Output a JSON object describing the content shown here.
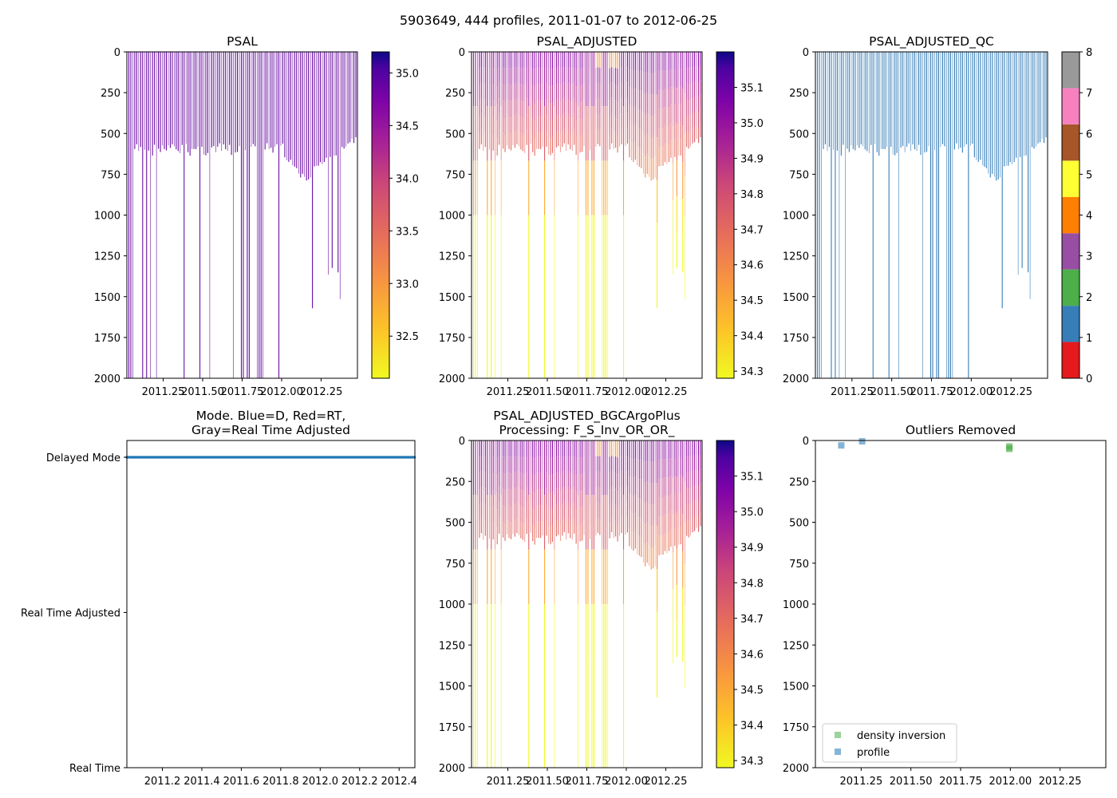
{
  "suptitle": "5903649, 444 profiles, 2011-01-07 to 2012-06-25",
  "chart_data": [
    {
      "type": "heatmap",
      "id": "psal",
      "title": "PSAL",
      "xlim": [
        2011.02,
        2012.48
      ],
      "x_ticks": [
        "2011.25",
        "2011.50",
        "2011.75",
        "2012.00",
        "2012.25"
      ],
      "x_tick_values": [
        2011.25,
        2011.5,
        2011.75,
        2012.0,
        2012.25
      ],
      "ylim": [
        2000,
        0
      ],
      "y_ticks": [
        "0",
        "250",
        "500",
        "750",
        "1000",
        "1250",
        "1500",
        "1750",
        "2000"
      ],
      "colormap": "plasma_r",
      "colorbar": {
        "ticks": [
          "32.5",
          "33.0",
          "33.5",
          "34.0",
          "34.5",
          "35.0"
        ],
        "range": [
          32.1,
          35.2
        ]
      },
      "profile_deep_dates": [
        2011.03,
        2011.05,
        2011.1,
        2011.15,
        2011.2,
        2011.25,
        2011.32,
        2011.38,
        2011.45,
        2011.55,
        2011.62,
        2011.68,
        2011.72,
        2011.8,
        2011.88,
        2011.95
      ],
      "shallow_color_value": 34.6
    },
    {
      "type": "heatmap",
      "id": "psal_adj",
      "title": "PSAL_ADJUSTED",
      "xlim": [
        2011.02,
        2012.48
      ],
      "x_ticks": [
        "2011.25",
        "2011.50",
        "2011.75",
        "2012.00",
        "2012.25"
      ],
      "x_tick_values": [
        2011.25,
        2011.5,
        2011.75,
        2012.0,
        2012.25
      ],
      "ylim": [
        2000,
        0
      ],
      "y_ticks": [
        "0",
        "250",
        "500",
        "750",
        "1000",
        "1250",
        "1500",
        "1750",
        "2000"
      ],
      "colormap": "plasma_r",
      "colorbar": {
        "ticks": [
          "34.3",
          "34.4",
          "34.5",
          "34.6",
          "34.7",
          "34.8",
          "34.9",
          "35.0",
          "35.1"
        ],
        "range": [
          34.28,
          35.2
        ]
      }
    },
    {
      "type": "heatmap",
      "id": "psal_adj_qc",
      "title": "PSAL_ADJUSTED_QC",
      "xlim": [
        2011.02,
        2012.48
      ],
      "x_ticks": [
        "2011.25",
        "2011.50",
        "2011.75",
        "2012.00",
        "2012.25"
      ],
      "x_tick_values": [
        2011.25,
        2011.5,
        2011.75,
        2012.0,
        2012.25
      ],
      "ylim": [
        2000,
        0
      ],
      "y_ticks": [
        "0",
        "250",
        "500",
        "750",
        "1000",
        "1250",
        "1500",
        "1750",
        "2000"
      ],
      "qc_flag": 1,
      "colorbar": {
        "ticks": [
          "0",
          "1",
          "2",
          "3",
          "4",
          "5",
          "6",
          "7",
          "8"
        ],
        "colors": [
          "#e41a1c",
          "#377eb8",
          "#4daf4a",
          "#984ea3",
          "#ff7f00",
          "#ffff33",
          "#a65628",
          "#f781bf",
          "#999999"
        ]
      }
    },
    {
      "type": "scatter",
      "id": "mode",
      "title": "Mode. Blue=D, Red=RT,\nGray=Real Time Adjusted",
      "xlim": [
        2011.02,
        2012.48
      ],
      "x_ticks": [
        "2011.2",
        "2011.4",
        "2011.6",
        "2011.8",
        "2012.0",
        "2012.2",
        "2012.4"
      ],
      "x_tick_values": [
        2011.2,
        2011.4,
        2011.6,
        2011.8,
        2012.0,
        2012.2,
        2012.4
      ],
      "y_categories": [
        "Delayed Mode",
        "Real Time Adjusted",
        "Real Time"
      ],
      "series": [
        {
          "name": "Delayed Mode",
          "y": "Delayed Mode",
          "x_range": [
            2011.02,
            2012.48
          ],
          "color": "#1f77b4"
        }
      ]
    },
    {
      "type": "heatmap",
      "id": "psal_bgc",
      "title": "PSAL_ADJUSTED_BGCArgoPlus\nProcessing: F_S_Inv_OR_OR_",
      "xlim": [
        2011.02,
        2012.48
      ],
      "x_ticks": [
        "2011.25",
        "2011.50",
        "2011.75",
        "2012.00",
        "2012.25"
      ],
      "x_tick_values": [
        2011.25,
        2011.5,
        2011.75,
        2012.0,
        2012.25
      ],
      "ylim": [
        2000,
        0
      ],
      "y_ticks": [
        "0",
        "250",
        "500",
        "750",
        "1000",
        "1250",
        "1500",
        "1750",
        "2000"
      ],
      "colormap": "plasma_r",
      "colorbar": {
        "ticks": [
          "34.3",
          "34.4",
          "34.5",
          "34.6",
          "34.7",
          "34.8",
          "34.9",
          "35.0",
          "35.1"
        ],
        "range": [
          34.28,
          35.2
        ]
      }
    },
    {
      "type": "scatter",
      "id": "outliers",
      "title": "Outliers Removed",
      "xlim": [
        2011.02,
        2012.48
      ],
      "x_ticks": [
        "2011.25",
        "2011.50",
        "2011.75",
        "2012.00",
        "2012.25"
      ],
      "x_tick_values": [
        2011.25,
        2011.5,
        2011.75,
        2012.0,
        2012.25
      ],
      "ylim": [
        2000,
        0
      ],
      "y_ticks": [
        "0",
        "250",
        "500",
        "750",
        "1000",
        "1250",
        "1500",
        "1750",
        "2000"
      ],
      "series": [
        {
          "name": "density inversion",
          "color": "#4daf4a",
          "points": [
            [
              2011.995,
              35
            ],
            [
              2011.995,
              45
            ],
            [
              2011.995,
              52
            ]
          ]
        },
        {
          "name": "profile",
          "color": "#1f77b4",
          "points": [
            [
              2011.15,
              30
            ],
            [
              2011.255,
              5
            ]
          ]
        }
      ],
      "legend": {
        "position": "lower-left",
        "entries": [
          "density inversion",
          "profile"
        ]
      }
    }
  ]
}
